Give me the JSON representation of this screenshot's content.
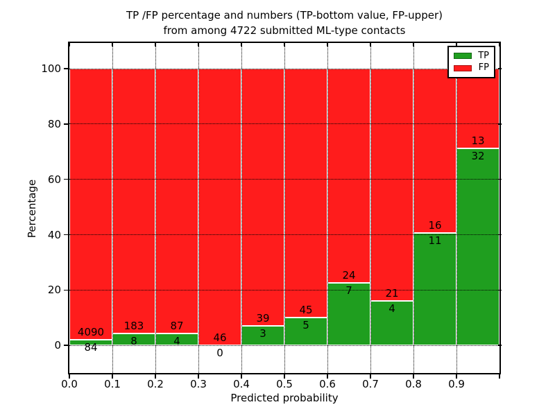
{
  "title": {
    "line1": "TP /FP percentage and numbers (TP-bottom value, FP-upper)",
    "line2": "from among 4722 submitted ML-type contacts"
  },
  "axes": {
    "xlabel": "Predicted probability",
    "ylabel": "Percentage",
    "xtick_labels": [
      "0.0",
      "0.1",
      "0.2",
      "0.3",
      "0.4",
      "0.5",
      "0.6",
      "0.7",
      "0.8",
      "0.9"
    ],
    "yticks": [
      0,
      20,
      40,
      60,
      80,
      100
    ],
    "xlim": [
      0.0,
      1.0
    ],
    "ylim": [
      -10,
      109.3
    ],
    "grid": "dotted black, both axes"
  },
  "legend": {
    "position": "upper right",
    "items": [
      {
        "label": "TP",
        "color": "#1f9e1f"
      },
      {
        "label": "FP",
        "color": "#ff1c1c"
      }
    ]
  },
  "colors": {
    "tp_green": "#1f9e1f",
    "fp_red": "#ff1c1c",
    "bar_edge": "#ffffff",
    "text": "#000000",
    "background": "#ffffff"
  },
  "chart_data": {
    "type": "bar",
    "stacked": true,
    "normalized": "each bin stacks to 100%",
    "title": "TP /FP percentage and numbers (TP-bottom value, FP-upper) from among 4722 submitted ML-type contacts",
    "xlabel": "Predicted probability",
    "ylabel": "Percentage",
    "xlim": [
      0.0,
      1.0
    ],
    "ylim": [
      -10,
      109.3
    ],
    "bin_width": 0.1,
    "categories": [
      "0.0-0.1",
      "0.1-0.2",
      "0.2-0.3",
      "0.3-0.4",
      "0.4-0.5",
      "0.5-0.6",
      "0.6-0.7",
      "0.7-0.8",
      "0.8-0.9",
      "0.9-1.0"
    ],
    "series": [
      {
        "name": "TP",
        "color": "#1f9e1f",
        "counts": [
          84,
          8,
          4,
          0,
          3,
          5,
          7,
          4,
          11,
          32
        ],
        "percent": [
          2.01,
          4.19,
          4.4,
          0.0,
          7.14,
          10.0,
          22.58,
          16.0,
          40.74,
          71.11
        ]
      },
      {
        "name": "FP",
        "color": "#ff1c1c",
        "counts": [
          4090,
          183,
          87,
          46,
          39,
          45,
          24,
          21,
          16,
          13
        ],
        "percent": [
          97.99,
          95.81,
          95.6,
          100.0,
          92.86,
          90.0,
          77.42,
          84.0,
          59.26,
          28.89
        ]
      }
    ],
    "total_contacts": 4722,
    "label_placement": "FP count above TP/FP boundary, TP count below boundary"
  }
}
